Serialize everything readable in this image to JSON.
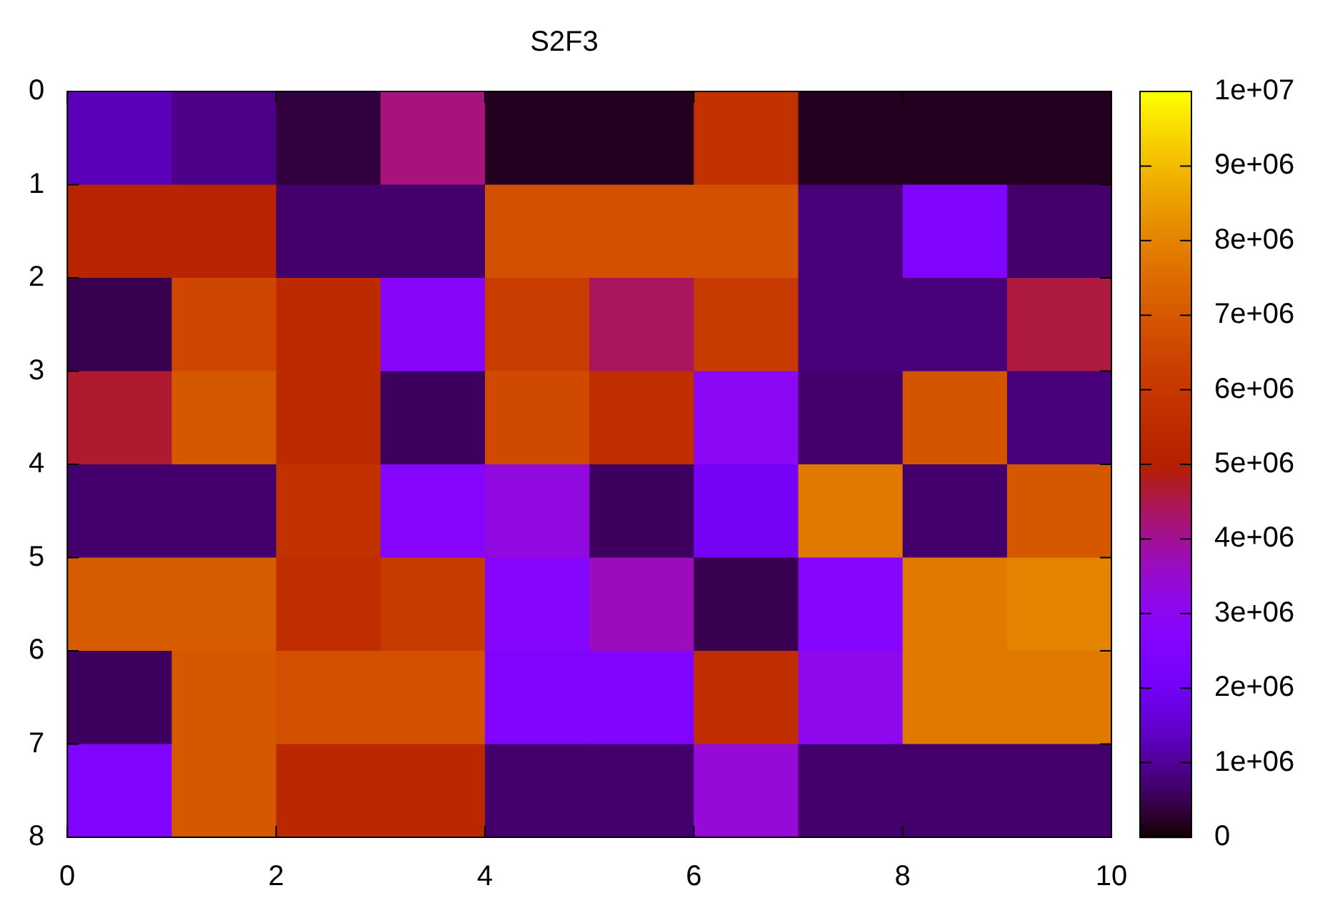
{
  "chart_data": {
    "type": "heatmap",
    "title": "S2F3",
    "xlim": [
      0,
      10
    ],
    "xticks": [
      0,
      2,
      4,
      6,
      8,
      10
    ],
    "ylim": [
      8,
      0
    ],
    "yticks": [
      0,
      1,
      2,
      3,
      4,
      5,
      6,
      7,
      8
    ],
    "clim": [
      0,
      10000000
    ],
    "cticks": [
      0,
      {
        "value": 1000000,
        "label": "1e+06"
      },
      {
        "value": 2000000,
        "label": "2e+06"
      },
      {
        "value": 3000000,
        "label": "3e+06"
      },
      {
        "value": 4000000,
        "label": "4e+06"
      },
      {
        "value": 5000000,
        "label": "5e+06"
      },
      {
        "value": 6000000,
        "label": "6e+06"
      },
      {
        "value": 7000000,
        "label": "7e+06"
      },
      {
        "value": 8000000,
        "label": "8e+06"
      },
      {
        "value": 9000000,
        "label": "9e+06"
      },
      {
        "value": 10000000,
        "label": "1e+07"
      }
    ],
    "cells": [
      [
        1300000,
        900000,
        400000,
        4200000,
        200000,
        200000,
        5800000,
        200000,
        200000,
        200000
      ],
      [
        5200000,
        5200000,
        700000,
        700000,
        6800000,
        6800000,
        6800000,
        800000,
        2500000,
        700000
      ],
      [
        500000,
        6500000,
        5500000,
        2800000,
        6200000,
        4400000,
        6100000,
        800000,
        800000,
        4600000
      ],
      [
        4700000,
        7000000,
        5500000,
        600000,
        6600000,
        5600000,
        3000000,
        700000,
        6900000,
        800000
      ],
      [
        700000,
        700000,
        5800000,
        2700000,
        3300000,
        600000,
        2100000,
        7800000,
        700000,
        7000000
      ],
      [
        7100000,
        7100000,
        5600000,
        6100000,
        2700000,
        3700000,
        500000,
        2700000,
        7800000,
        8000000
      ],
      [
        600000,
        7000000,
        6800000,
        6800000,
        2500000,
        2500000,
        5600000,
        3100000,
        7800000,
        7800000
      ],
      [
        2500000,
        7000000,
        5400000,
        5400000,
        700000,
        700000,
        3400000,
        700000,
        700000,
        700000
      ]
    ]
  }
}
